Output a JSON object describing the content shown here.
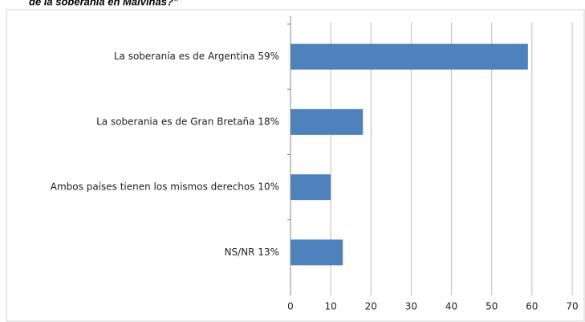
{
  "chart_data": {
    "type": "bar",
    "orientation": "horizontal",
    "title": "de la soberanía en Malvinas?”",
    "categories": [
      "La soberanía es de Argentina  59%",
      "La soberania es de Gran Bretaña  18%",
      "Ambos países tienen los mismos derechos  10%",
      "NS/NR  13%"
    ],
    "values": [
      59,
      18,
      10,
      13
    ],
    "color": "#4f81bd",
    "xlim": [
      0,
      70
    ],
    "xticks": [
      0,
      10,
      20,
      30,
      40,
      50,
      60,
      70
    ],
    "grid": true
  }
}
